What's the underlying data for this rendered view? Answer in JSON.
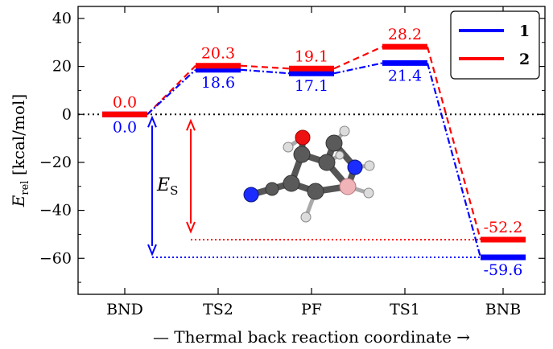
{
  "chart_data": {
    "type": "line",
    "xlabel": "— Thermal back reaction coordinate →",
    "ylabel_main": "E",
    "ylabel_sub": "rel",
    "ylabel_unit": "[kcal/mol]",
    "ylim": [
      -75,
      45
    ],
    "yticks": [
      40,
      20,
      0,
      -20,
      -40,
      -60
    ],
    "ytick_labels": [
      "40",
      "20",
      "0",
      "−20",
      "−40",
      "−60"
    ],
    "categories": [
      "BND",
      "TS2",
      "PF",
      "TS1",
      "BNB"
    ],
    "series": [
      {
        "name": "1",
        "color": "#0000ff",
        "values": [
          0.0,
          18.6,
          17.1,
          21.4,
          -59.6
        ],
        "labels": [
          "0.0",
          "18.6",
          "17.1",
          "21.4",
          "-59.6"
        ],
        "label_position": "below"
      },
      {
        "name": "2",
        "color": "#ff0000",
        "values": [
          0.0,
          20.3,
          19.1,
          28.2,
          -52.2
        ],
        "labels": [
          "0.0",
          "20.3",
          "19.1",
          "28.2",
          "-52.2"
        ],
        "label_position": "above"
      }
    ],
    "reference_line": {
      "value": 0,
      "style": "dotted",
      "color": "#000000"
    },
    "annotation": {
      "symbol": "E",
      "subscript": "S",
      "description": "storage energy arrows from 0 to BNB level for each series"
    },
    "legend": {
      "placement": "top-right"
    },
    "grid": false,
    "inset": "molecule-structure"
  }
}
